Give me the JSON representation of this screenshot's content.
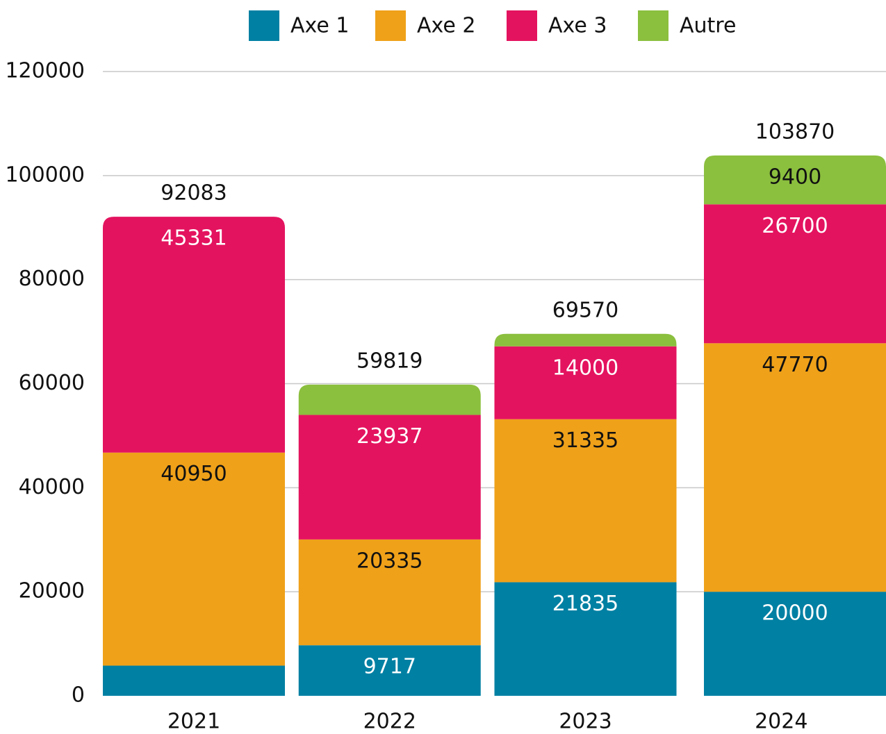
{
  "chart_data": {
    "type": "stacked_bar",
    "categories": [
      "2021",
      "2022",
      "2023",
      "2024"
    ],
    "series": [
      {
        "name": "Axe 1",
        "color": "#0080a3",
        "values": [
          5802,
          9717,
          21835,
          20000
        ],
        "value_labels": [
          null,
          "9717",
          "21835",
          "20000"
        ]
      },
      {
        "name": "Axe 2",
        "color": "#efa119",
        "values": [
          40950,
          20335,
          31335,
          47770
        ],
        "value_labels": [
          "40950",
          "20335",
          "31335",
          "47770"
        ]
      },
      {
        "name": "Axe 3",
        "color": "#e4135f",
        "values": [
          45331,
          23937,
          14000,
          26700
        ],
        "value_labels": [
          "45331",
          "23937",
          "14000",
          "26700"
        ]
      },
      {
        "name": "Autre",
        "color": "#8bbf3e",
        "values": [
          0,
          5830,
          2400,
          9400
        ],
        "value_labels": [
          null,
          null,
          null,
          "9400"
        ]
      }
    ],
    "totals": [
      92083,
      59819,
      69570,
      103870
    ],
    "ylim": [
      0,
      120000
    ],
    "yticks": [
      0,
      20000,
      40000,
      60000,
      80000,
      100000,
      120000
    ],
    "grid": true,
    "legend": "top"
  }
}
